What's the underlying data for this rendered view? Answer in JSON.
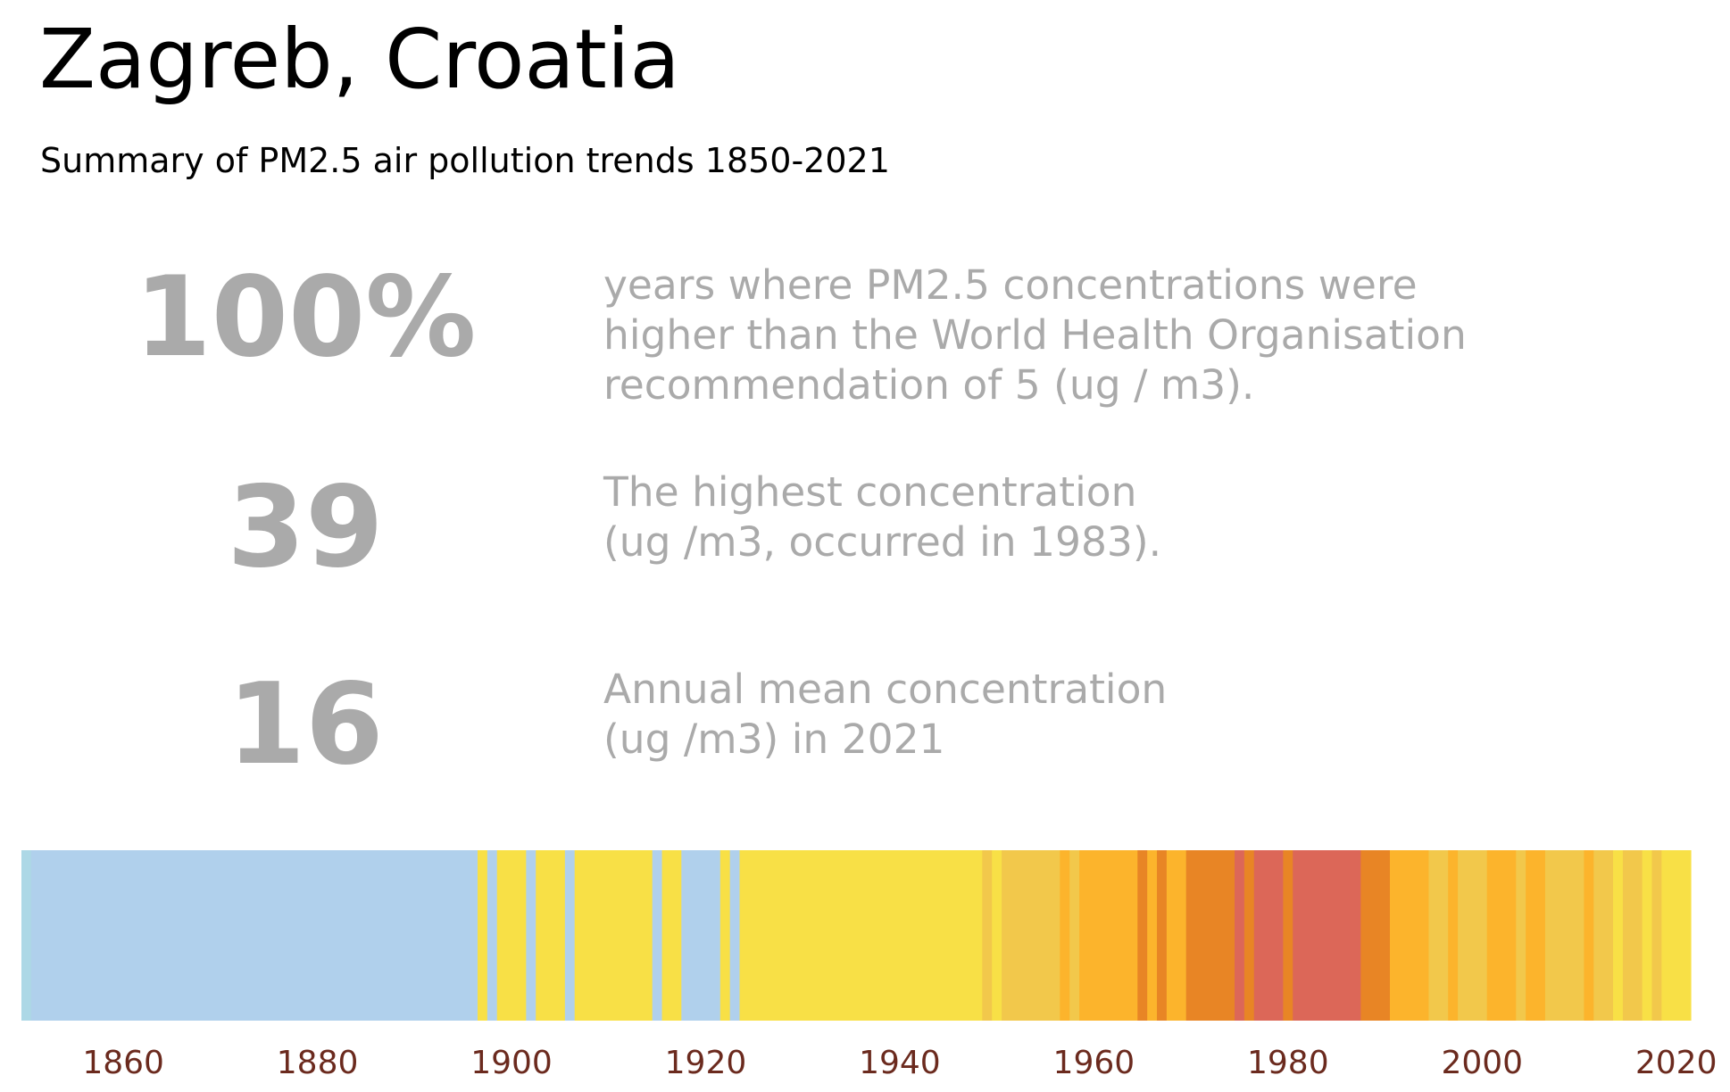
{
  "title": "Zagreb, Croatia",
  "subtitle": "Summary of PM2.5 air pollution trends 1850-2021",
  "stats": [
    {
      "value": "100%",
      "description": "years where PM2.5 concentrations were\nhigher than the World Health Organisation\nrecommendation of 5 (ug / m3)."
    },
    {
      "value": "39",
      "description": "The highest concentration\n(ug /m3, occurred in 1983)."
    },
    {
      "value": "16",
      "description": "Annual mean concentration\n(ug /m3) in 2021"
    }
  ],
  "chart_data": {
    "type": "heatmap",
    "description_of_encoding": "warming-stripes style: one vertical stripe per year coloured by PM2.5 category",
    "x_range": [
      1850,
      2021
    ],
    "xlim": [
      1849.5,
      2021.5
    ],
    "x_ticks": [
      1860,
      1880,
      1900,
      1920,
      1940,
      1960,
      1980,
      2000,
      2020
    ],
    "grid": false,
    "legend": "none",
    "colors": {
      "light_blue": "#add8e6",
      "blue": "#b0d0ec",
      "yellow": "#f8e046",
      "gold": "#f2c84b",
      "orange": "#fcb42c",
      "dark_orange": "#e88525",
      "red": "#dc6758"
    },
    "tick_label_color": "#6b2a1e",
    "stripes": [
      {
        "from": 1850,
        "to": 1850,
        "color": "light_blue"
      },
      {
        "from": 1851,
        "to": 1896,
        "color": "blue"
      },
      {
        "from": 1897,
        "to": 1897,
        "color": "yellow"
      },
      {
        "from": 1898,
        "to": 1898,
        "color": "blue"
      },
      {
        "from": 1899,
        "to": 1901,
        "color": "yellow"
      },
      {
        "from": 1902,
        "to": 1902,
        "color": "blue"
      },
      {
        "from": 1903,
        "to": 1905,
        "color": "yellow"
      },
      {
        "from": 1906,
        "to": 1906,
        "color": "blue"
      },
      {
        "from": 1907,
        "to": 1914,
        "color": "yellow"
      },
      {
        "from": 1915,
        "to": 1915,
        "color": "blue"
      },
      {
        "from": 1916,
        "to": 1917,
        "color": "yellow"
      },
      {
        "from": 1918,
        "to": 1921,
        "color": "blue"
      },
      {
        "from": 1922,
        "to": 1922,
        "color": "yellow"
      },
      {
        "from": 1923,
        "to": 1923,
        "color": "blue"
      },
      {
        "from": 1924,
        "to": 1948,
        "color": "yellow"
      },
      {
        "from": 1949,
        "to": 1949,
        "color": "gold"
      },
      {
        "from": 1950,
        "to": 1950,
        "color": "yellow"
      },
      {
        "from": 1951,
        "to": 1956,
        "color": "gold"
      },
      {
        "from": 1957,
        "to": 1957,
        "color": "orange"
      },
      {
        "from": 1958,
        "to": 1958,
        "color": "gold"
      },
      {
        "from": 1959,
        "to": 1964,
        "color": "orange"
      },
      {
        "from": 1965,
        "to": 1965,
        "color": "dark_orange"
      },
      {
        "from": 1966,
        "to": 1966,
        "color": "orange"
      },
      {
        "from": 1967,
        "to": 1967,
        "color": "dark_orange"
      },
      {
        "from": 1968,
        "to": 1969,
        "color": "orange"
      },
      {
        "from": 1970,
        "to": 1974,
        "color": "dark_orange"
      },
      {
        "from": 1975,
        "to": 1975,
        "color": "red"
      },
      {
        "from": 1976,
        "to": 1976,
        "color": "dark_orange"
      },
      {
        "from": 1977,
        "to": 1979,
        "color": "red"
      },
      {
        "from": 1980,
        "to": 1980,
        "color": "dark_orange"
      },
      {
        "from": 1981,
        "to": 1987,
        "color": "red"
      },
      {
        "from": 1988,
        "to": 1990,
        "color": "dark_orange"
      },
      {
        "from": 1991,
        "to": 1994,
        "color": "orange"
      },
      {
        "from": 1995,
        "to": 1996,
        "color": "gold"
      },
      {
        "from": 1997,
        "to": 1997,
        "color": "orange"
      },
      {
        "from": 1998,
        "to": 2000,
        "color": "gold"
      },
      {
        "from": 2001,
        "to": 2003,
        "color": "orange"
      },
      {
        "from": 2004,
        "to": 2004,
        "color": "gold"
      },
      {
        "from": 2005,
        "to": 2006,
        "color": "orange"
      },
      {
        "from": 2007,
        "to": 2010,
        "color": "gold"
      },
      {
        "from": 2011,
        "to": 2011,
        "color": "orange"
      },
      {
        "from": 2012,
        "to": 2013,
        "color": "gold"
      },
      {
        "from": 2014,
        "to": 2014,
        "color": "yellow"
      },
      {
        "from": 2015,
        "to": 2016,
        "color": "gold"
      },
      {
        "from": 2017,
        "to": 2017,
        "color": "yellow"
      },
      {
        "from": 2018,
        "to": 2018,
        "color": "gold"
      },
      {
        "from": 2019,
        "to": 2021,
        "color": "yellow"
      }
    ]
  }
}
